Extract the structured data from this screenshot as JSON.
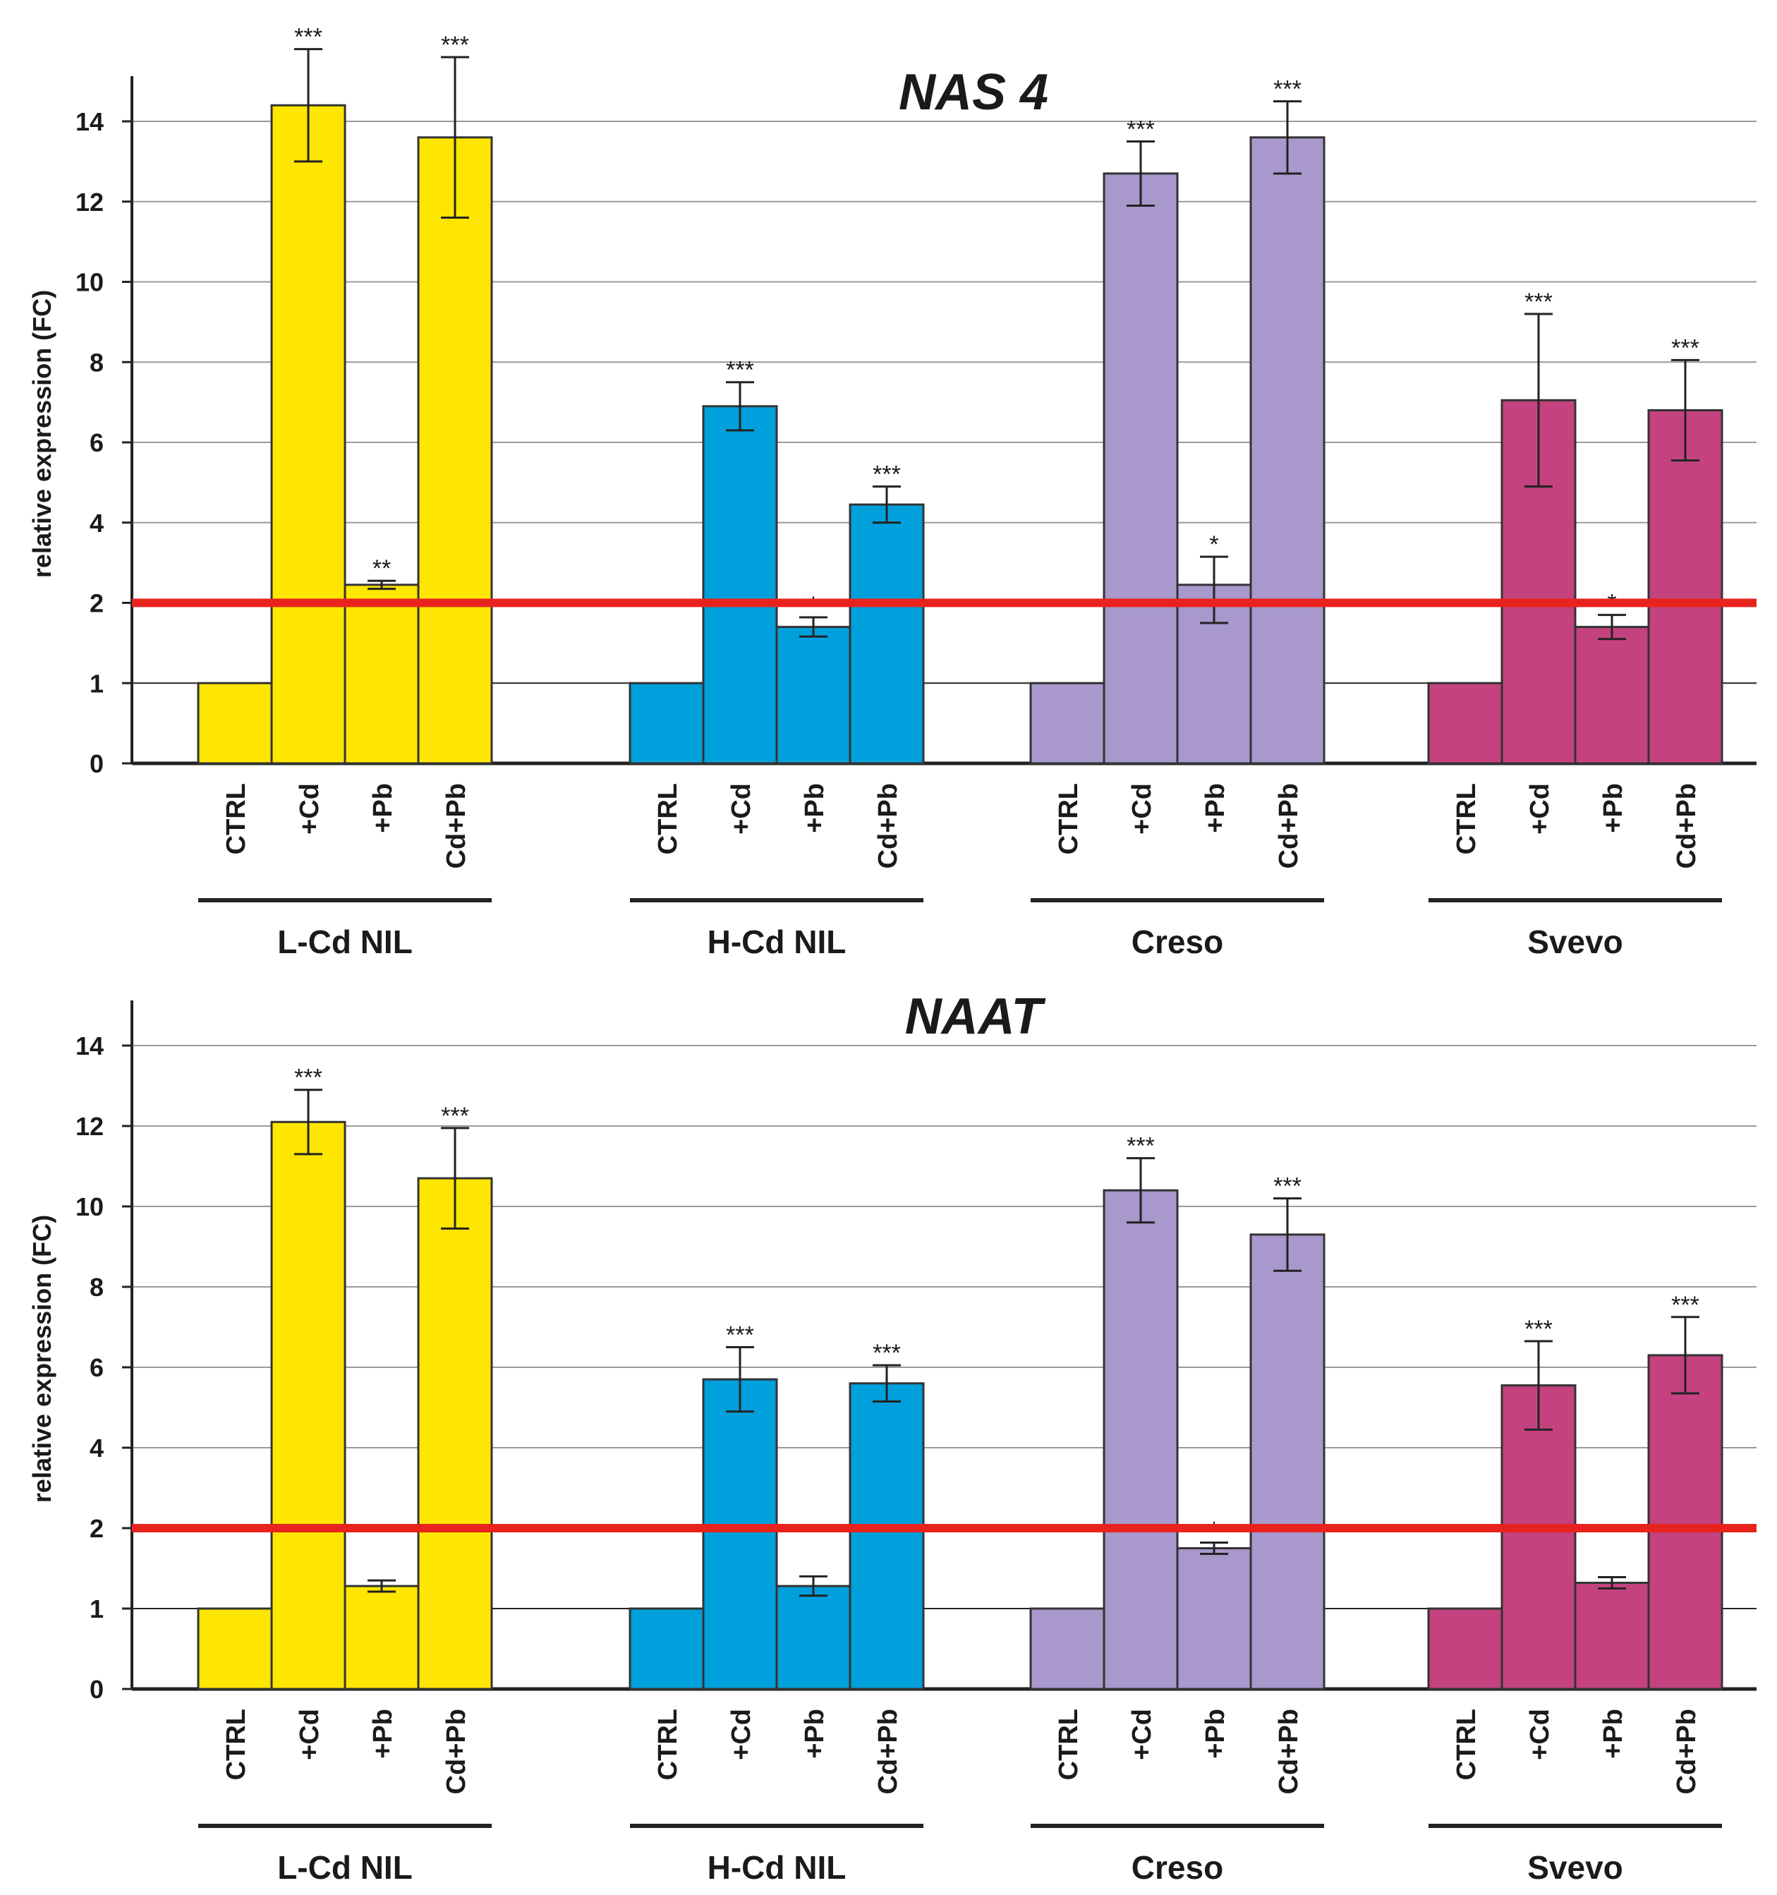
{
  "chart_data": [
    {
      "type": "bar",
      "title": "NAS 4",
      "ylabel": "relative expression (FC)",
      "xlabel": "",
      "yticks": [
        0,
        1,
        2,
        4,
        6,
        8,
        10,
        12,
        14
      ],
      "threshold": 2,
      "categories": [
        "CTRL",
        "+Cd",
        "+Pb",
        "Cd+Pb"
      ],
      "groups": [
        {
          "name": "L-Cd NIL",
          "color": "#ffe600",
          "values": [
            1,
            14.4,
            2.45,
            13.6
          ],
          "errors": [
            0,
            1.4,
            0.1,
            2.0
          ],
          "significance": [
            "",
            "***",
            "**",
            "***"
          ]
        },
        {
          "name": "H-Cd NIL",
          "color": "#00a0dc",
          "values": [
            1,
            6.9,
            1.7,
            4.45
          ],
          "errors": [
            0,
            0.6,
            0.12,
            0.45
          ],
          "significance": [
            "",
            "***",
            "*",
            "***"
          ]
        },
        {
          "name": "Creso",
          "color": "#a898cc",
          "values": [
            1,
            12.7,
            2.45,
            13.6
          ],
          "errors": [
            0,
            0.8,
            0.7,
            0.9
          ],
          "significance": [
            "",
            "***",
            "*",
            "***"
          ]
        },
        {
          "name": "Svevo",
          "color": "#c4427f",
          "values": [
            1,
            7.05,
            1.7,
            6.8
          ],
          "errors": [
            0,
            2.15,
            0.15,
            1.25
          ],
          "significance": [
            "",
            "***",
            "*",
            "***"
          ]
        }
      ]
    },
    {
      "type": "bar",
      "title": "NAAT",
      "ylabel": "relative expression (FC)",
      "xlabel": "",
      "yticks": [
        0,
        1,
        2,
        4,
        6,
        8,
        10,
        12,
        14
      ],
      "threshold": 2,
      "categories": [
        "CTRL",
        "+Cd",
        "+Pb",
        "Cd+Pb"
      ],
      "groups": [
        {
          "name": "L-Cd NIL",
          "color": "#ffe600",
          "values": [
            1,
            12.1,
            1.28,
            10.7
          ],
          "errors": [
            0,
            0.8,
            0.07,
            1.25
          ],
          "significance": [
            "",
            "***",
            "",
            "***"
          ]
        },
        {
          "name": "H-Cd NIL",
          "color": "#00a0dc",
          "values": [
            1,
            5.7,
            1.28,
            5.6
          ],
          "errors": [
            0,
            0.8,
            0.12,
            0.45
          ],
          "significance": [
            "",
            "***",
            "",
            "***"
          ]
        },
        {
          "name": "Creso",
          "color": "#a898cc",
          "values": [
            1,
            10.4,
            1.75,
            9.3
          ],
          "errors": [
            0,
            0.8,
            0.07,
            0.9
          ],
          "significance": [
            "",
            "***",
            "*",
            "***"
          ]
        },
        {
          "name": "Svevo",
          "color": "#c4427f",
          "values": [
            1,
            5.55,
            1.32,
            6.3
          ],
          "errors": [
            0,
            1.1,
            0.07,
            0.95
          ],
          "significance": [
            "",
            "***",
            "",
            "***"
          ]
        }
      ]
    }
  ]
}
